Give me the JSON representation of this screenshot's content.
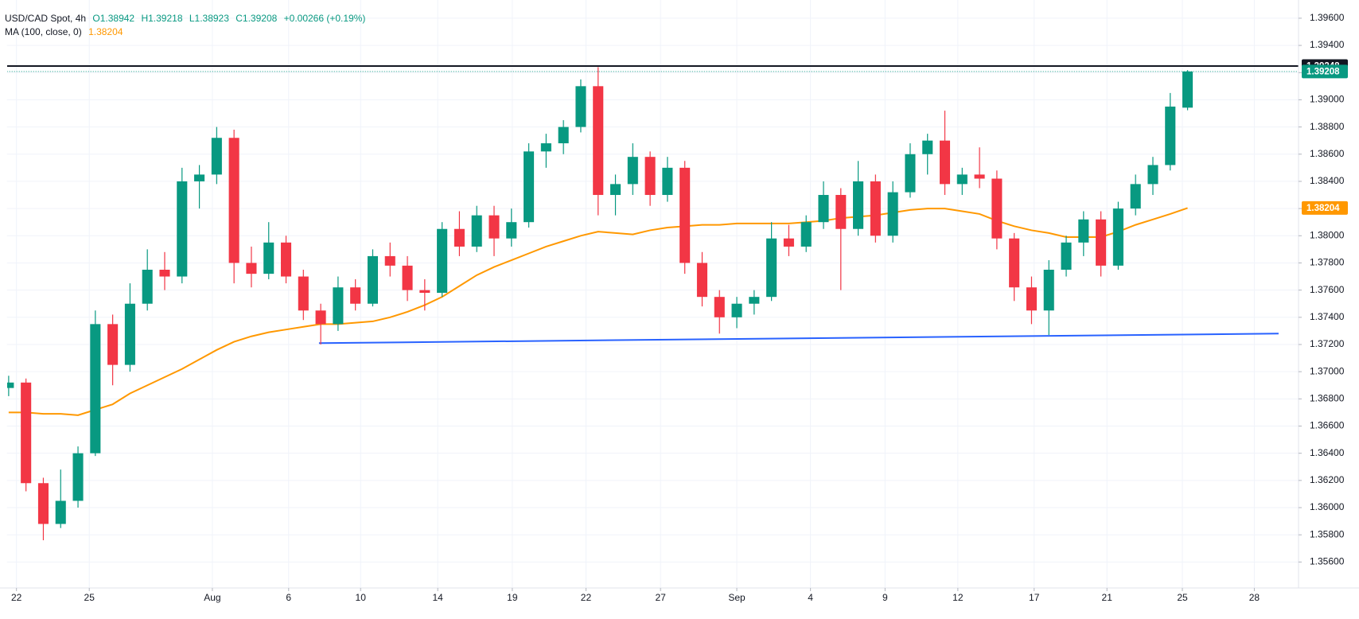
{
  "chart_data": {
    "type": "candlestick",
    "title": "USD/CAD Spot, 4h",
    "ohlc_labels": [
      "O1.38942",
      "H1.39218",
      "L1.38923",
      "C1.39208"
    ],
    "change": "+0.00266 (+0.19%)",
    "up_color": "#089981",
    "down_color": "#f23645",
    "open": [
      1.3688,
      1.3692,
      1.3618,
      1.3588,
      1.3605,
      1.364,
      1.3735,
      1.3705,
      1.375,
      1.3775,
      1.377,
      1.384,
      1.3845,
      1.3872,
      1.378,
      1.3772,
      1.3795,
      1.377,
      1.3745,
      1.3735,
      1.3762,
      1.375,
      1.3785,
      1.3778,
      1.376,
      1.3758,
      1.3805,
      1.3792,
      1.3815,
      1.3798,
      1.381,
      1.3862,
      1.3868,
      1.388,
      1.391,
      1.383,
      1.3838,
      1.3858,
      1.383,
      1.385,
      1.378,
      1.3755,
      1.374,
      1.375,
      1.3755,
      1.3798,
      1.3792,
      1.381,
      1.383,
      1.3805,
      1.384,
      1.38,
      1.3832,
      1.386,
      1.387,
      1.3838,
      1.3845,
      1.3842,
      1.3798,
      1.3762,
      1.3745,
      1.3775,
      1.3795,
      1.3812,
      1.3778,
      1.382,
      1.3838,
      1.3852,
      1.38942
    ],
    "high": [
      1.3697,
      1.3695,
      1.3622,
      1.3628,
      1.3645,
      1.3745,
      1.3742,
      1.3765,
      1.379,
      1.3788,
      1.385,
      1.3852,
      1.388,
      1.3878,
      1.3792,
      1.381,
      1.38,
      1.3775,
      1.375,
      1.377,
      1.3768,
      1.379,
      1.3795,
      1.3785,
      1.3768,
      1.381,
      1.3818,
      1.3822,
      1.3822,
      1.382,
      1.3868,
      1.3875,
      1.3885,
      1.3915,
      1.3924,
      1.3845,
      1.3868,
      1.3862,
      1.3858,
      1.3855,
      1.3788,
      1.376,
      1.3755,
      1.376,
      1.381,
      1.3808,
      1.3815,
      1.384,
      1.3835,
      1.3855,
      1.3845,
      1.384,
      1.3868,
      1.3875,
      1.3892,
      1.385,
      1.3865,
      1.3848,
      1.3802,
      1.377,
      1.3782,
      1.38,
      1.3818,
      1.3818,
      1.3825,
      1.3845,
      1.3858,
      1.3905,
      1.39218
    ],
    "low": [
      1.3682,
      1.3612,
      1.3576,
      1.3585,
      1.36,
      1.3638,
      1.369,
      1.37,
      1.3745,
      1.376,
      1.3765,
      1.382,
      1.3838,
      1.3765,
      1.3762,
      1.3768,
      1.3765,
      1.3738,
      1.372,
      1.373,
      1.3745,
      1.3748,
      1.377,
      1.3752,
      1.3745,
      1.3755,
      1.3785,
      1.3788,
      1.3785,
      1.3792,
      1.3806,
      1.385,
      1.386,
      1.3876,
      1.3815,
      1.3815,
      1.383,
      1.3822,
      1.3825,
      1.3772,
      1.3748,
      1.3728,
      1.3732,
      1.3742,
      1.3752,
      1.3785,
      1.3788,
      1.3805,
      1.376,
      1.38,
      1.3795,
      1.3795,
      1.3828,
      1.3845,
      1.383,
      1.383,
      1.3835,
      1.379,
      1.3752,
      1.3735,
      1.3727,
      1.377,
      1.3785,
      1.377,
      1.3775,
      1.3815,
      1.383,
      1.3848,
      1.38923
    ],
    "close": [
      1.3692,
      1.3618,
      1.3588,
      1.3605,
      1.364,
      1.3735,
      1.3705,
      1.375,
      1.3775,
      1.377,
      1.384,
      1.3845,
      1.3872,
      1.378,
      1.3772,
      1.3795,
      1.377,
      1.3745,
      1.3735,
      1.3762,
      1.375,
      1.3785,
      1.3778,
      1.376,
      1.3758,
      1.3805,
      1.3792,
      1.3815,
      1.3798,
      1.381,
      1.3862,
      1.3868,
      1.388,
      1.391,
      1.383,
      1.3838,
      1.3858,
      1.383,
      1.385,
      1.378,
      1.3755,
      1.374,
      1.375,
      1.3755,
      1.3798,
      1.3792,
      1.381,
      1.383,
      1.3805,
      1.384,
      1.38,
      1.3832,
      1.386,
      1.387,
      1.3838,
      1.3845,
      1.3842,
      1.3798,
      1.3762,
      1.3745,
      1.3775,
      1.3795,
      1.3812,
      1.3778,
      1.382,
      1.3838,
      1.3852,
      1.3895,
      1.39208
    ],
    "indicator": {
      "name": "MA (100, close, 0)",
      "value_label": "1.38204",
      "color": "#ff9800",
      "values": [
        1.367,
        1.367,
        1.3669,
        1.3669,
        1.3668,
        1.3672,
        1.3676,
        1.3684,
        1.369,
        1.3696,
        1.3702,
        1.3709,
        1.3716,
        1.3722,
        1.3726,
        1.3729,
        1.3731,
        1.3733,
        1.3735,
        1.3735,
        1.3736,
        1.3737,
        1.374,
        1.3744,
        1.3749,
        1.3755,
        1.3763,
        1.3771,
        1.3777,
        1.3782,
        1.3787,
        1.3792,
        1.3796,
        1.38,
        1.3803,
        1.3802,
        1.3801,
        1.3804,
        1.3806,
        1.3807,
        1.3808,
        1.3808,
        1.3809,
        1.3809,
        1.3809,
        1.3809,
        1.381,
        1.3811,
        1.3813,
        1.3814,
        1.3815,
        1.3817,
        1.3819,
        1.382,
        1.382,
        1.3818,
        1.3816,
        1.3811,
        1.3807,
        1.3804,
        1.3802,
        1.3799,
        1.3799,
        1.3799,
        1.3803,
        1.3808,
        1.3812,
        1.3816,
        1.38204
      ]
    },
    "xlim": [
      -0.1,
      74.4
    ],
    "xticks": [
      {
        "value": 0.45,
        "label": "22"
      },
      {
        "value": 4.65,
        "label": "25"
      },
      {
        "value": 11.75,
        "label": "Aug"
      },
      {
        "value": 16.15,
        "label": "6"
      },
      {
        "value": 20.3,
        "label": "10"
      },
      {
        "value": 24.75,
        "label": "14"
      },
      {
        "value": 29.05,
        "label": "19"
      },
      {
        "value": 33.3,
        "label": "22"
      },
      {
        "value": 37.6,
        "label": "27"
      },
      {
        "value": 42.0,
        "label": "Sep"
      },
      {
        "value": 46.25,
        "label": "4"
      },
      {
        "value": 50.55,
        "label": "9"
      },
      {
        "value": 54.75,
        "label": "12"
      },
      {
        "value": 59.15,
        "label": "17"
      },
      {
        "value": 63.35,
        "label": "21"
      },
      {
        "value": 67.7,
        "label": "25"
      },
      {
        "value": 71.85,
        "label": "28"
      }
    ],
    "ylim": [
      1.35409,
      1.39734
    ],
    "yticks": [
      {
        "value": 1.356,
        "label": "1.35600"
      },
      {
        "value": 1.358,
        "label": "1.35800"
      },
      {
        "value": 1.36,
        "label": "1.36000"
      },
      {
        "value": 1.362,
        "label": "1.36200"
      },
      {
        "value": 1.364,
        "label": "1.36400"
      },
      {
        "value": 1.366,
        "label": "1.36600"
      },
      {
        "value": 1.368,
        "label": "1.36800"
      },
      {
        "value": 1.37,
        "label": "1.37000"
      },
      {
        "value": 1.372,
        "label": "1.37200"
      },
      {
        "value": 1.374,
        "label": "1.37400"
      },
      {
        "value": 1.376,
        "label": "1.37600"
      },
      {
        "value": 1.378,
        "label": "1.37800"
      },
      {
        "value": 1.38,
        "label": "1.38000"
      },
      {
        "value": 1.382,
        "label": "1.38200"
      },
      {
        "value": 1.384,
        "label": "1.38400"
      },
      {
        "value": 1.386,
        "label": "1.38600"
      },
      {
        "value": 1.388,
        "label": "1.38800"
      },
      {
        "value": 1.39,
        "label": "1.39000"
      },
      {
        "value": 1.392,
        "label": "1.39200"
      },
      {
        "value": 1.394,
        "label": "1.39400"
      },
      {
        "value": 1.396,
        "label": "1.39600"
      }
    ],
    "grid": true,
    "price_lines": [
      {
        "value": 1.39248,
        "color": "#131722",
        "style": "solid"
      },
      {
        "value": 1.39208,
        "color": "#089981",
        "style": "dotted"
      }
    ],
    "trendline": {
      "x": [
        17.9,
        73.25
      ],
      "y": [
        1.3721,
        1.3728
      ],
      "color": "#2962ff"
    }
  }
}
